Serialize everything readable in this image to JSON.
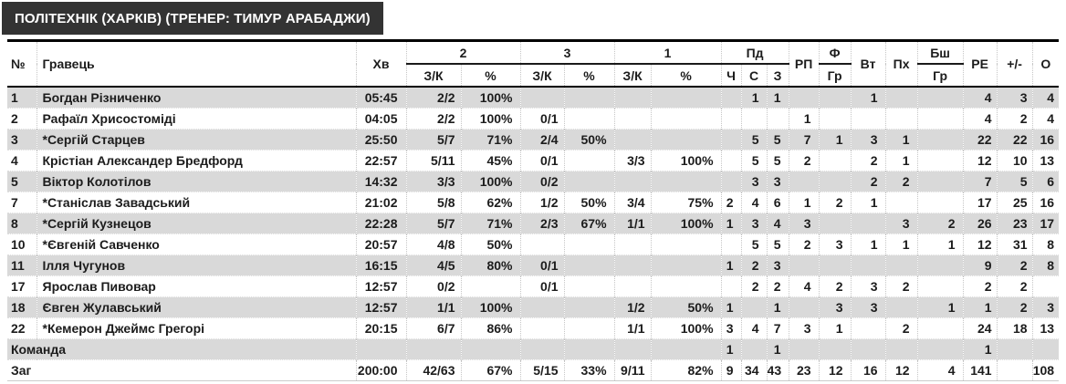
{
  "title": "ПОЛІТЕХНІК (ХАРКІВ) (ТРЕНЕР: ТИМУР АРАБАДЖИ)",
  "colors": {
    "header_bg": "#333333",
    "header_text": "#ffffff",
    "row_shade": "#d9d9d9",
    "table_border": "#000000"
  },
  "table": {
    "headers": {
      "num": "№",
      "player": "Гравець",
      "min": "Хв",
      "g2": "2",
      "g3": "3",
      "g1": "1",
      "pd": "Пд",
      "zk": "З/К",
      "pct": "%",
      "ch": "Ч",
      "s": "С",
      "z": "З",
      "rp": "РП",
      "f": "Ф",
      "gr": "Гр",
      "vt": "Вт",
      "ph": "Пх",
      "bsh": "Бш",
      "re": "РЕ",
      "pm": "+/-",
      "o": "О"
    },
    "rows": [
      {
        "num": "1",
        "name": "Богдан Різниченко",
        "min": "05:45",
        "p2": "2/2",
        "p2p": "100%",
        "p3": "",
        "p3p": "",
        "p1": "",
        "p1p": "",
        "ch": "",
        "s": "1",
        "z": "1",
        "rp": "",
        "f": "",
        "vt": "1",
        "ph": "",
        "bsh": "",
        "re": "4",
        "pm": "3",
        "o": "4"
      },
      {
        "num": "2",
        "name": "Рафаїл Хрисостоміді",
        "min": "04:05",
        "p2": "2/2",
        "p2p": "100%",
        "p3": "0/1",
        "p3p": "",
        "p1": "",
        "p1p": "",
        "ch": "",
        "s": "",
        "z": "",
        "rp": "1",
        "f": "",
        "vt": "",
        "ph": "",
        "bsh": "",
        "re": "4",
        "pm": "2",
        "o": "4"
      },
      {
        "num": "3",
        "name": "*Сергій Старцев",
        "min": "25:50",
        "p2": "5/7",
        "p2p": "71%",
        "p3": "2/4",
        "p3p": "50%",
        "p1": "",
        "p1p": "",
        "ch": "",
        "s": "5",
        "z": "5",
        "rp": "7",
        "f": "1",
        "vt": "3",
        "ph": "1",
        "bsh": "",
        "re": "22",
        "pm": "22",
        "o": "16"
      },
      {
        "num": "4",
        "name": "Крістіан Александер Бредфорд",
        "min": "22:57",
        "p2": "5/11",
        "p2p": "45%",
        "p3": "0/1",
        "p3p": "",
        "p1": "3/3",
        "p1p": "100%",
        "ch": "",
        "s": "5",
        "z": "5",
        "rp": "2",
        "f": "",
        "vt": "2",
        "ph": "1",
        "bsh": "",
        "re": "12",
        "pm": "10",
        "o": "13"
      },
      {
        "num": "5",
        "name": "Віктор Колотілов",
        "min": "14:32",
        "p2": "3/3",
        "p2p": "100%",
        "p3": "0/2",
        "p3p": "",
        "p1": "",
        "p1p": "",
        "ch": "",
        "s": "3",
        "z": "3",
        "rp": "",
        "f": "",
        "vt": "2",
        "ph": "2",
        "bsh": "",
        "re": "7",
        "pm": "5",
        "o": "6"
      },
      {
        "num": "7",
        "name": "*Станіслав Завадський",
        "min": "21:02",
        "p2": "5/8",
        "p2p": "62%",
        "p3": "1/2",
        "p3p": "50%",
        "p1": "3/4",
        "p1p": "75%",
        "ch": "2",
        "s": "4",
        "z": "6",
        "rp": "1",
        "f": "2",
        "vt": "1",
        "ph": "",
        "bsh": "",
        "re": "17",
        "pm": "25",
        "o": "16"
      },
      {
        "num": "8",
        "name": "*Сергій Кузнецов",
        "min": "22:28",
        "p2": "5/7",
        "p2p": "71%",
        "p3": "2/3",
        "p3p": "67%",
        "p1": "1/1",
        "p1p": "100%",
        "ch": "1",
        "s": "3",
        "z": "4",
        "rp": "3",
        "f": "",
        "vt": "",
        "ph": "3",
        "bsh": "2",
        "re": "26",
        "pm": "23",
        "o": "17"
      },
      {
        "num": "10",
        "name": "*Євгеній Савченко",
        "min": "20:57",
        "p2": "4/8",
        "p2p": "50%",
        "p3": "",
        "p3p": "",
        "p1": "",
        "p1p": "",
        "ch": "",
        "s": "5",
        "z": "5",
        "rp": "2",
        "f": "3",
        "vt": "1",
        "ph": "1",
        "bsh": "1",
        "re": "12",
        "pm": "31",
        "o": "8"
      },
      {
        "num": "11",
        "name": "Ілля Чугунов",
        "min": "16:15",
        "p2": "4/5",
        "p2p": "80%",
        "p3": "0/1",
        "p3p": "",
        "p1": "",
        "p1p": "",
        "ch": "1",
        "s": "2",
        "z": "3",
        "rp": "",
        "f": "",
        "vt": "",
        "ph": "",
        "bsh": "",
        "re": "9",
        "pm": "2",
        "o": "8"
      },
      {
        "num": "17",
        "name": "Ярослав Пивовар",
        "min": "12:57",
        "p2": "0/2",
        "p2p": "",
        "p3": "0/1",
        "p3p": "",
        "p1": "",
        "p1p": "",
        "ch": "",
        "s": "2",
        "z": "2",
        "rp": "4",
        "f": "2",
        "vt": "3",
        "ph": "2",
        "bsh": "",
        "re": "2",
        "pm": "2",
        "o": ""
      },
      {
        "num": "18",
        "name": "Євген Жулавський",
        "min": "12:57",
        "p2": "1/1",
        "p2p": "100%",
        "p3": "",
        "p3p": "",
        "p1": "1/2",
        "p1p": "50%",
        "ch": "1",
        "s": "",
        "z": "1",
        "rp": "",
        "f": "3",
        "vt": "3",
        "ph": "",
        "bsh": "1",
        "re": "1",
        "pm": "2",
        "o": "3"
      },
      {
        "num": "22",
        "name": "*Кемерон Джеймс Грегорі",
        "min": "20:15",
        "p2": "6/7",
        "p2p": "86%",
        "p3": "",
        "p3p": "",
        "p1": "1/1",
        "p1p": "100%",
        "ch": "3",
        "s": "4",
        "z": "7",
        "rp": "3",
        "f": "1",
        "vt": "",
        "ph": "2",
        "bsh": "",
        "re": "24",
        "pm": "18",
        "o": "13"
      },
      {
        "label": "Команда",
        "min": "",
        "p2": "",
        "p2p": "",
        "p3": "",
        "p3p": "",
        "p1": "",
        "p1p": "",
        "ch": "1",
        "s": "",
        "z": "1",
        "rp": "",
        "f": "",
        "vt": "",
        "ph": "",
        "bsh": "",
        "re": "1",
        "pm": "",
        "o": ""
      },
      {
        "label": "Заг",
        "min": "200:00",
        "p2": "42/63",
        "p2p": "67%",
        "p3": "5/15",
        "p3p": "33%",
        "p1": "9/11",
        "p1p": "82%",
        "ch": "9",
        "s": "34",
        "z": "43",
        "rp": "23",
        "f": "12",
        "vt": "16",
        "ph": "12",
        "bsh": "4",
        "re": "141",
        "pm": "",
        "o": "108"
      }
    ]
  }
}
